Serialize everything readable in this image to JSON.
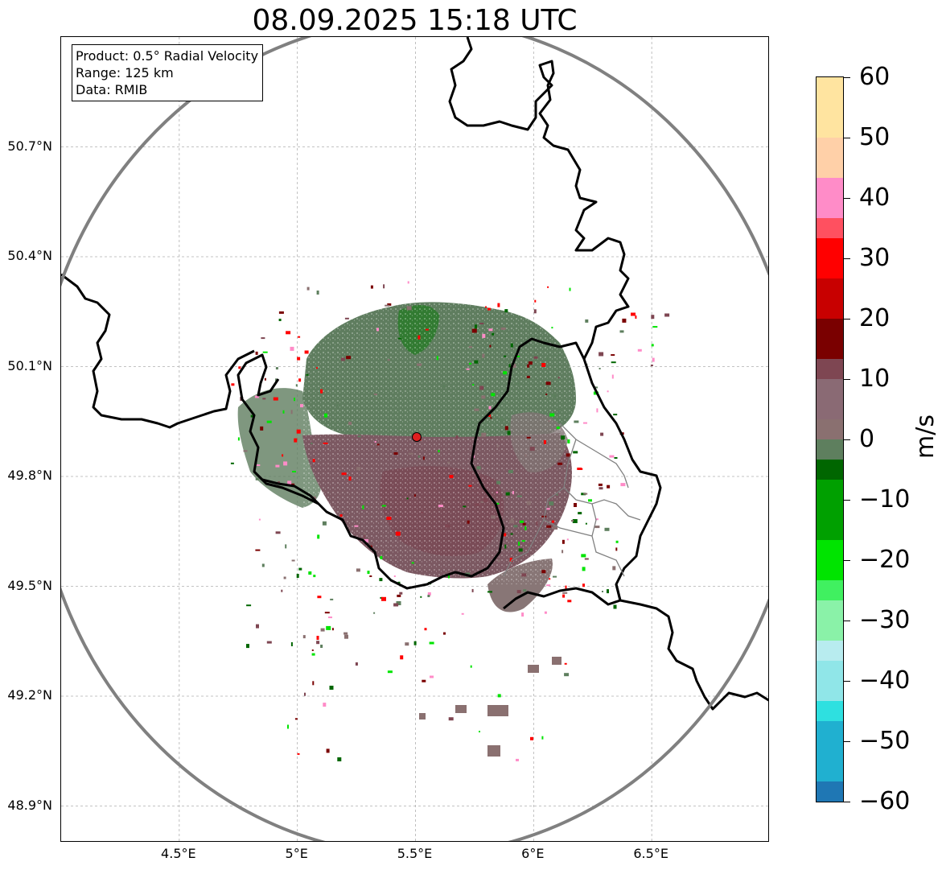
{
  "title": "08.09.2025 15:18 UTC",
  "info_box": {
    "product": "Product: 0.5° Radial Velocity",
    "range": "Range: 125 km",
    "data": "Data: RMIB"
  },
  "map": {
    "lon_range": [
      4.0,
      7.0
    ],
    "lat_range": [
      48.8,
      51.0
    ],
    "radar_site": {
      "lon": 5.505,
      "lat": 49.915
    },
    "range_ring_km": 125,
    "lat_ticks": [
      "50.7°N",
      "50.4°N",
      "50.1°N",
      "49.8°N",
      "49.5°N",
      "49.2°N",
      "48.9°N"
    ],
    "lon_ticks": [
      "4.5°E",
      "5°E",
      "5.5°E",
      "6°E",
      "6.5°E"
    ],
    "gridlines": true
  },
  "colorbar": {
    "label": "m/s",
    "vmin": -60,
    "vmax": 60,
    "tick_labels": [
      "60",
      "50",
      "40",
      "30",
      "20",
      "10",
      "0",
      "−10",
      "−20",
      "−30",
      "−40",
      "−50",
      "−60"
    ],
    "colors": {
      "negative_far": "#1f77b4",
      "cyan": "#2ee0e0",
      "light_cyan": "#b8ecef",
      "light_green": "#8af2a8",
      "green": "#00e400",
      "dark_green": "#006600",
      "gray_green": "#5e7f5e",
      "gray_rose": "#8a7070",
      "dark_rose": "#7e4652",
      "dark_red": "#7a0000",
      "red": "#ff0000",
      "pink_red": "#ff5060",
      "pink": "#ff8cc8",
      "peach": "#ffe4a0",
      "orange": "#ff9a5a"
    }
  }
}
